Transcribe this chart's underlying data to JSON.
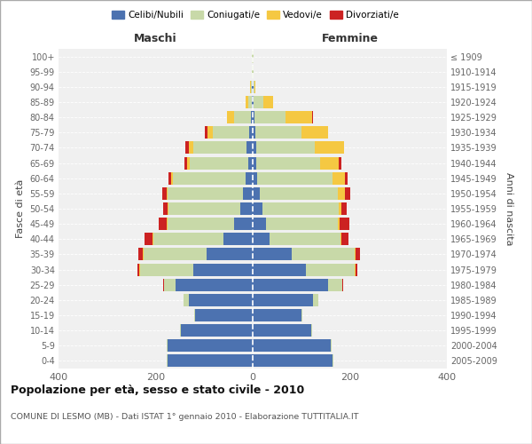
{
  "age_groups": [
    "0-4",
    "5-9",
    "10-14",
    "15-19",
    "20-24",
    "25-29",
    "30-34",
    "35-39",
    "40-44",
    "45-49",
    "50-54",
    "55-59",
    "60-64",
    "65-69",
    "70-74",
    "75-79",
    "80-84",
    "85-89",
    "90-94",
    "95-99",
    "100+"
  ],
  "birth_years": [
    "2005-2009",
    "2000-2004",
    "1995-1999",
    "1990-1994",
    "1985-1989",
    "1980-1984",
    "1975-1979",
    "1970-1974",
    "1965-1969",
    "1960-1964",
    "1955-1959",
    "1950-1954",
    "1945-1949",
    "1940-1944",
    "1935-1939",
    "1930-1934",
    "1925-1929",
    "1920-1924",
    "1915-1919",
    "1910-1914",
    "≤ 1909"
  ],
  "males": {
    "celibi": [
      175,
      175,
      148,
      118,
      132,
      158,
      122,
      95,
      60,
      38,
      25,
      20,
      15,
      10,
      13,
      8,
      3,
      2,
      1,
      0,
      0
    ],
    "coniugati": [
      2,
      2,
      2,
      2,
      10,
      25,
      110,
      130,
      145,
      138,
      148,
      155,
      150,
      120,
      110,
      75,
      35,
      8,
      3,
      1,
      1
    ],
    "vedovi": [
      0,
      0,
      0,
      0,
      0,
      0,
      1,
      1,
      2,
      2,
      2,
      2,
      3,
      5,
      8,
      10,
      15,
      5,
      1,
      0,
      0
    ],
    "divorziati": [
      0,
      0,
      0,
      0,
      1,
      2,
      5,
      10,
      15,
      15,
      10,
      10,
      5,
      5,
      8,
      5,
      0,
      0,
      0,
      0,
      0
    ]
  },
  "females": {
    "nubili": [
      165,
      160,
      120,
      100,
      125,
      155,
      110,
      80,
      35,
      28,
      20,
      15,
      10,
      8,
      8,
      5,
      3,
      2,
      1,
      0,
      0
    ],
    "coniugate": [
      2,
      2,
      2,
      2,
      10,
      30,
      100,
      130,
      145,
      148,
      158,
      160,
      155,
      130,
      120,
      95,
      65,
      20,
      3,
      1,
      1
    ],
    "vedove": [
      0,
      0,
      0,
      0,
      0,
      0,
      1,
      1,
      2,
      3,
      5,
      15,
      25,
      40,
      60,
      55,
      55,
      20,
      2,
      0,
      0
    ],
    "divorziate": [
      0,
      0,
      0,
      0,
      0,
      1,
      5,
      10,
      15,
      20,
      10,
      10,
      5,
      5,
      0,
      0,
      2,
      0,
      0,
      0,
      0
    ]
  },
  "colors": {
    "celibi_nubili": "#4c72b0",
    "coniugati": "#c8d9a8",
    "vedovi": "#f5c842",
    "divorziati": "#cc2222"
  },
  "title": "Popolazione per età, sesso e stato civile - 2010",
  "subtitle": "COMUNE DI LESMO (MB) - Dati ISTAT 1° gennaio 2010 - Elaborazione TUTTITALIA.IT",
  "xlabel_left": "Maschi",
  "xlabel_right": "Femmine",
  "ylabel_left": "Fasce di età",
  "ylabel_right": "Anni di nascita",
  "xlim": 400,
  "bg_color": "#ffffff",
  "plot_bg": "#f0f0f0",
  "grid_color": "#cccccc"
}
